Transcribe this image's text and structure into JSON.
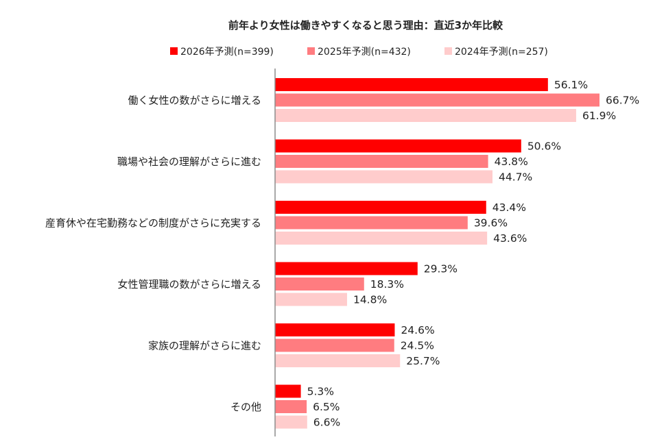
{
  "chart_data": {
    "type": "bar",
    "orientation": "horizontal",
    "title": "前年より女性は働きやすくなると思う理由：直近3か年比較",
    "legend_position": "top",
    "grid": false,
    "xlim": [
      0,
      70
    ],
    "value_suffix": "%",
    "categories": [
      "働く女性の数がさらに増える",
      "職場や社会の理解がさらに進む",
      "産育休や在宅勤務などの制度がさらに充実する",
      "女性管理職の数がさらに増える",
      "家族の理解がさらに進む",
      "その他"
    ],
    "series": [
      {
        "name": "2026年予測(n=399)",
        "color": "#ff0000",
        "values": [
          56.1,
          50.6,
          43.4,
          29.3,
          24.6,
          5.3
        ]
      },
      {
        "name": "2025年予測(n=432)",
        "color": "#ff7c80",
        "values": [
          66.7,
          43.8,
          39.6,
          18.3,
          24.5,
          6.5
        ]
      },
      {
        "name": "2024年予測(n=257)",
        "color": "#ffcccc",
        "values": [
          61.9,
          44.7,
          43.6,
          14.8,
          25.7,
          6.6
        ]
      }
    ]
  }
}
